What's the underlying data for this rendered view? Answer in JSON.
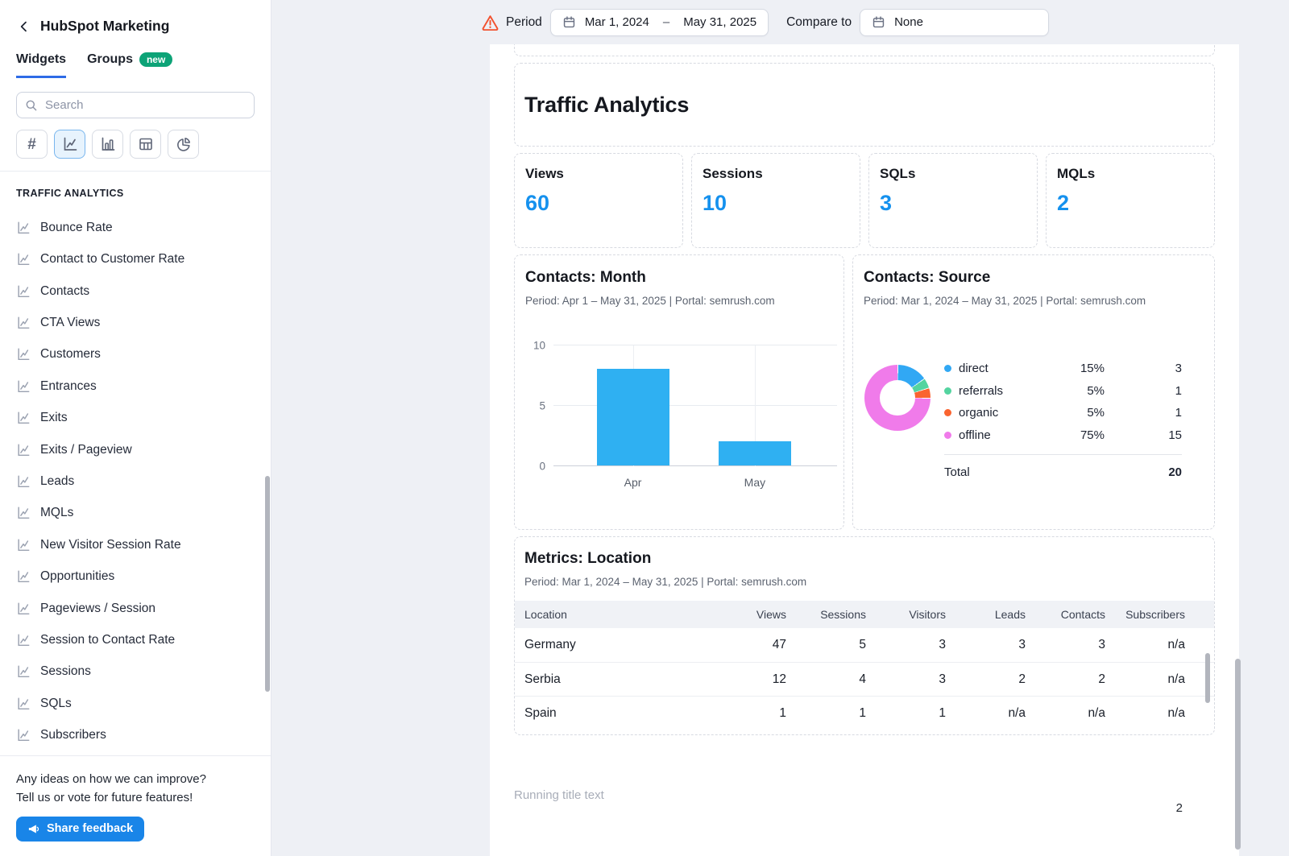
{
  "sidebar": {
    "title": "HubSpot Marketing",
    "tabs": [
      {
        "label": "Widgets",
        "active": true
      },
      {
        "label": "Groups",
        "active": false,
        "badge": "new"
      }
    ],
    "search": {
      "placeholder": "Search"
    },
    "filters": [
      {
        "name": "number-widgets",
        "icon": "hash-icon",
        "active": false
      },
      {
        "name": "line-chart-widgets",
        "icon": "line-chart-icon",
        "active": true
      },
      {
        "name": "bar-chart-widgets",
        "icon": "bar-chart-icon",
        "active": false
      },
      {
        "name": "table-widgets",
        "icon": "table-icon",
        "active": false
      },
      {
        "name": "pie-chart-widgets",
        "icon": "pie-chart-icon",
        "active": false
      }
    ],
    "section_title": "TRAFFIC ANALYTICS",
    "items": [
      "Bounce Rate",
      "Contact to Customer Rate",
      "Contacts",
      "CTA Views",
      "Customers",
      "Entrances",
      "Exits",
      "Exits / Pageview",
      "Leads",
      "MQLs",
      "New Visitor Session Rate",
      "Opportunities",
      "Pageviews / Session",
      "Session to Contact Rate",
      "Sessions",
      "SQLs",
      "Subscribers"
    ],
    "footer": {
      "line1": "Any ideas on how we can improve?",
      "line2": "Tell us or vote for future features!",
      "button": "Share feedback"
    }
  },
  "topbar": {
    "period_label": "Period",
    "period_start": "Mar 1, 2024",
    "period_separator": "–",
    "period_end": "May 31, 2025",
    "compare_label": "Compare to",
    "compare_value": "None"
  },
  "page": {
    "report_title": "Traffic Analytics",
    "stats": [
      {
        "label": "Views",
        "value": "60"
      },
      {
        "label": "Sessions",
        "value": "10"
      },
      {
        "label": "SQLs",
        "value": "3"
      },
      {
        "label": "MQLs",
        "value": "2"
      }
    ],
    "month_chart": {
      "title": "Contacts: Month",
      "subtitle": "Period: Apr 1 – May 31, 2025 | Portal: semrush.com"
    },
    "source_chart": {
      "title": "Contacts: Source",
      "subtitle": "Period: Mar 1, 2024 – May 31, 2025 | Portal: semrush.com",
      "total_label": "Total",
      "total_value": "20"
    },
    "location": {
      "title": "Metrics: Location",
      "subtitle": "Period: Mar 1, 2024 – May 31, 2025 | Portal: semrush.com"
    },
    "running_title": "Running title text",
    "page_number": "2"
  },
  "chart_data": [
    {
      "type": "bar",
      "title": "Contacts: Month",
      "categories": [
        "Apr",
        "May"
      ],
      "values": [
        8,
        2
      ],
      "ylim": [
        0,
        10
      ],
      "yticks": [
        0,
        5,
        10
      ],
      "bar_color": "#2fb0f2",
      "grid": true
    },
    {
      "type": "pie",
      "title": "Contacts: Source",
      "series": [
        {
          "name": "direct",
          "percent": 15,
          "value": 3,
          "color": "#31a8f4"
        },
        {
          "name": "referrals",
          "percent": 5,
          "value": 1,
          "color": "#54d4a0"
        },
        {
          "name": "organic",
          "percent": 5,
          "value": 1,
          "color": "#fa6430"
        },
        {
          "name": "offline",
          "percent": 75,
          "value": 15,
          "color": "#f07bea"
        }
      ],
      "total_label": "Total",
      "total": 20,
      "legend_position": "right"
    },
    {
      "type": "table",
      "title": "Metrics: Location",
      "columns": [
        "Location",
        "Views",
        "Sessions",
        "Visitors",
        "Leads",
        "Contacts",
        "Subscribers"
      ],
      "rows": [
        [
          "Germany",
          "47",
          "5",
          "3",
          "3",
          "3",
          "n/a"
        ],
        [
          "Serbia",
          "12",
          "4",
          "3",
          "2",
          "2",
          "n/a"
        ],
        [
          "Spain",
          "1",
          "1",
          "1",
          "n/a",
          "n/a",
          "n/a"
        ]
      ]
    }
  ],
  "colors": {
    "accent_blue": "#1591ee",
    "tab_underline": "#2e6be6",
    "badge_green": "#0da377",
    "warning_orange": "#f2512e",
    "bar_blue": "#2fb0f2"
  }
}
